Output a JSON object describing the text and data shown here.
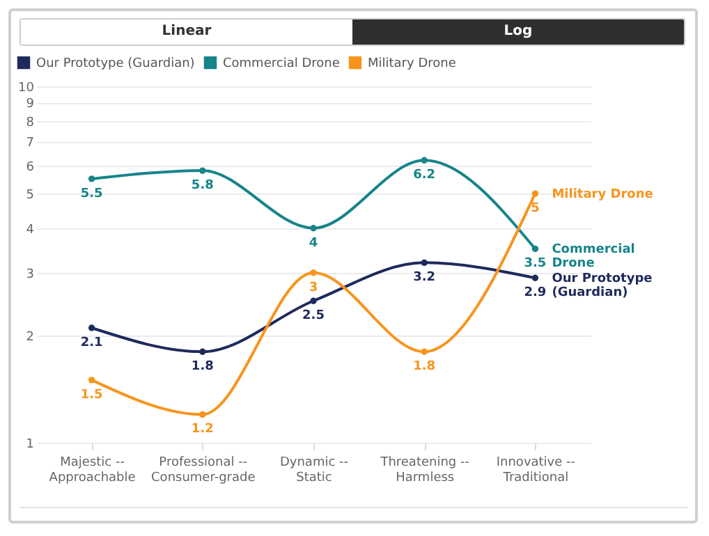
{
  "chart_data": {
    "type": "line",
    "annotations": [
      "Linear",
      "Log"
    ],
    "categories": [
      "Majestic --\nApproachable",
      "Professional --\nConsumer-grade",
      "Dynamic --\nStatic",
      "Threatening --\nHarmless",
      "Innovative --\nTraditional"
    ],
    "series": [
      {
        "name": "Our Prototype (Guardian)",
        "color": "#1f2a5c",
        "values": [
          2.1,
          1.8,
          2.5,
          3.2,
          2.9
        ]
      },
      {
        "name": "Commercial Drone",
        "color": "#17848a",
        "values": [
          5.5,
          5.8,
          4,
          6.2,
          3.5
        ]
      },
      {
        "name": "Military Drone",
        "color": "#f7941d",
        "values": [
          1.5,
          1.2,
          3,
          1.8,
          5
        ]
      }
    ],
    "log": true,
    "ylim": [
      1,
      10
    ],
    "yticks": [
      1,
      2,
      3,
      4,
      5,
      6,
      7,
      8,
      9,
      10
    ],
    "grid": "y",
    "legend": "top left",
    "marker": "circle",
    "data_labels": true
  }
}
